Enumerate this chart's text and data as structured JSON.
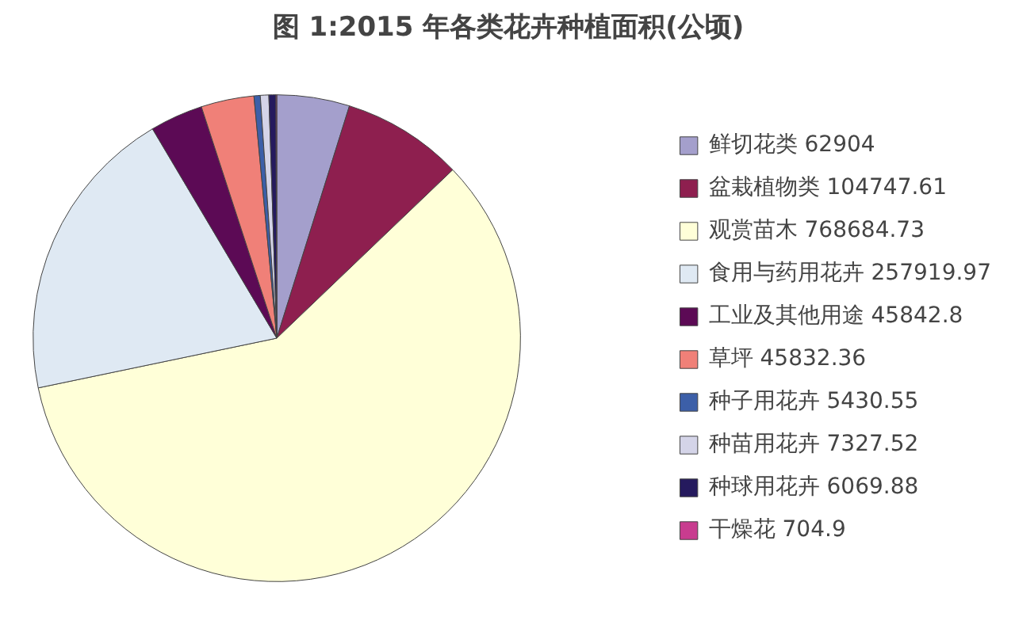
{
  "chart_data": {
    "type": "pie",
    "title": "图 1:2015 年各类花卉种植面积(公顷)",
    "categories": [
      "鲜切花类",
      "盆栽植物类",
      "观赏苗木",
      "食用与药用花卉",
      "工业及其他用途",
      "草坪",
      "种子用花卉",
      "种苗用花卉",
      "种球用花卉",
      "干燥花"
    ],
    "values": [
      62904,
      104747.61,
      768684.73,
      257919.97,
      45842.8,
      45832.36,
      5430.55,
      7327.52,
      6069.88,
      704.9
    ],
    "value_labels": [
      "62904",
      "104747.61",
      "768684.73",
      "257919.97",
      "45842.8",
      "45832.36",
      "5430.55",
      "7327.52",
      "6069.88",
      "704.9"
    ],
    "colors": [
      "#a49fcc",
      "#8e1f4f",
      "#ffffd8",
      "#dfe9f3",
      "#5c0a55",
      "#f08078",
      "#3c5fa8",
      "#d4d4e8",
      "#251a5e",
      "#c83c8f"
    ],
    "legend": "right"
  }
}
